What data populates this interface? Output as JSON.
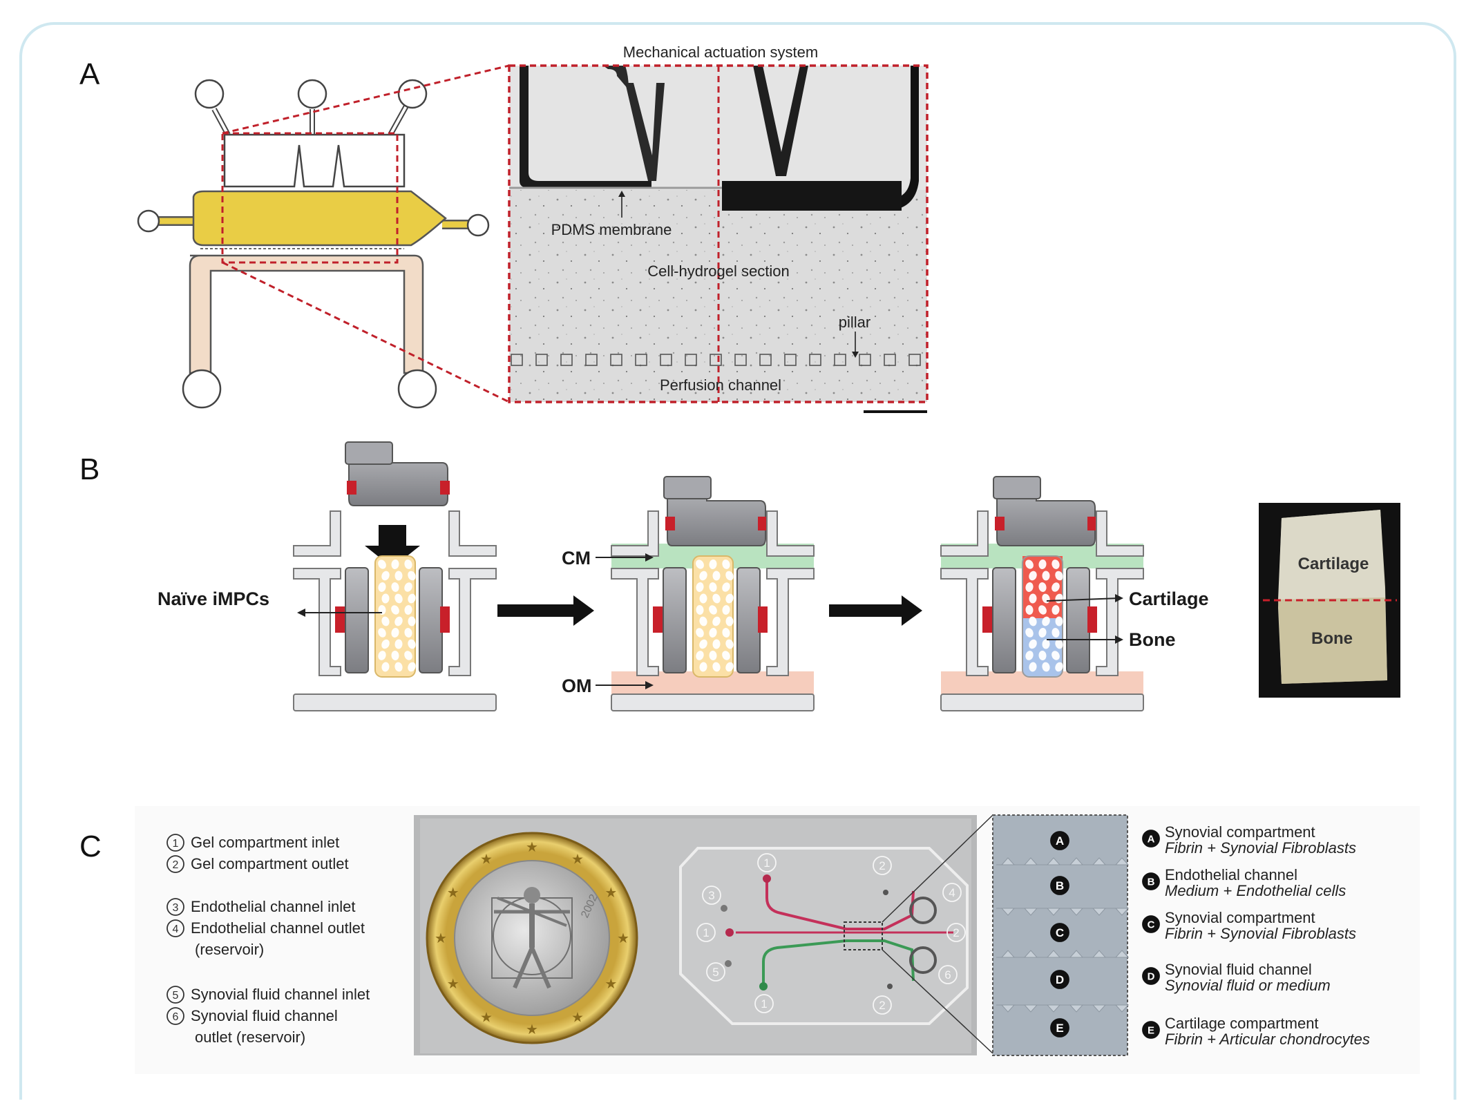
{
  "panels": {
    "a": {
      "letter": "A",
      "labels": {
        "actuation": "Mechanical actuation system",
        "membrane": "PDMS membrane",
        "hydrogel": "Cell-hydrogel section",
        "pillar": "pillar",
        "perfusion": "Perfusion channel"
      }
    },
    "b": {
      "letter": "B",
      "labels": {
        "naive": "Naïve iMPCs",
        "cm": "CM",
        "om": "OM",
        "cartilage_arrow": "Cartilage",
        "bone_arrow": "Bone",
        "photo_cartilage": "Cartilage",
        "photo_bone": "Bone"
      },
      "colors": {
        "cm_medium": "#b9e3c0",
        "om_medium": "#f6cdbd",
        "cells": "#fbe0a6",
        "cartilage": "#ef5a4e",
        "bone": "#a9c3ea",
        "seal": "#c8202a"
      }
    },
    "c": {
      "letter": "C",
      "ports": [
        {
          "num": "1",
          "text": "Gel compartment inlet"
        },
        {
          "num": "2",
          "text": "Gel compartment outlet"
        },
        {
          "num": "3",
          "text": "Endothelial channel inlet"
        },
        {
          "num": "4",
          "text": "Endothelial channel outlet"
        },
        {
          "num": "",
          "text": "(reservoir)"
        },
        {
          "num": "5",
          "text": "Synovial fluid channel inlet"
        },
        {
          "num": "6",
          "text": "Synovial fluid channel"
        },
        {
          "num": "",
          "text": "outlet (reservoir)"
        }
      ],
      "chip_numbers": [
        "1",
        "2",
        "3",
        "4",
        "1",
        "2",
        "5",
        "6",
        "1",
        "2"
      ],
      "coin_text": "2002",
      "zones": [
        "A",
        "B",
        "C",
        "D",
        "E"
      ],
      "legend": [
        {
          "letter": "A",
          "title": "Synovial compartment",
          "sub": "Fibrin + Synovial Fibroblasts"
        },
        {
          "letter": "B",
          "title": "Endothelial channel",
          "sub": "Medium + Endothelial cells"
        },
        {
          "letter": "C",
          "title": "Synovial compartment",
          "sub": "Fibrin + Synovial Fibroblasts"
        },
        {
          "letter": "D",
          "title": "Synovial fluid channel",
          "sub": "Synovial fluid or medium"
        },
        {
          "letter": "E",
          "title": "Cartilage compartment",
          "sub": "Fibrin + Articular chondrocytes"
        }
      ]
    }
  }
}
